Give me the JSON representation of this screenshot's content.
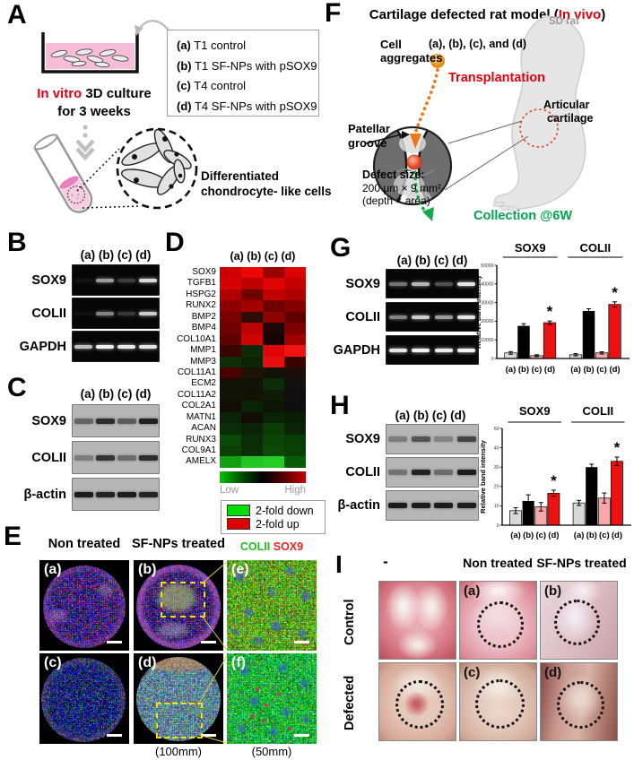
{
  "panelA": {
    "label": "A",
    "legend": [
      {
        "prefix": "(a)",
        "text": " T1 control"
      },
      {
        "prefix": "(b)",
        "text": " T1 SF-NPs with pSOX9"
      },
      {
        "prefix": "(c)",
        "text": " T4 control"
      },
      {
        "prefix": "(d)",
        "text": " T4 SF-NPs with pSOX9"
      }
    ],
    "invitro_red": "In vitro",
    "invitro_black": " 3D culture",
    "invitro_line2": "for 3 weeks",
    "diff_line1": "Differentiated",
    "diff_line2": "chondrocyte- like cells"
  },
  "panelF": {
    "label": "F",
    "title_black": "Cartilage defected rat model (",
    "title_red": "In vivo",
    "title_close": ")",
    "cell_line1": "Cell",
    "cell_line2": "aggregates",
    "groups_line": "(a), (b), (c), and (d)",
    "transplantation": "Transplantation",
    "sd_rat": "SD rat",
    "articular_line1": "Articular",
    "articular_line2": "cartilage",
    "patellar_line1": "Patellar",
    "patellar_line2": "groove",
    "defect_title": "Defect size:",
    "defect_dim": "200 μm × 9 mm²",
    "defect_note": "(depth × area)",
    "collection": "Collection @6W"
  },
  "panelB": {
    "label": "B",
    "lane_header": "(a) (b) (c) (d)",
    "rows": [
      {
        "label": "SOX9",
        "bands": [
          0.05,
          0.6,
          0.22,
          0.85
        ]
      },
      {
        "label": "COLII",
        "bands": [
          0.04,
          0.5,
          0.2,
          0.8
        ]
      },
      {
        "label": "GAPDH",
        "bands": [
          0.75,
          0.95,
          0.92,
          0.9
        ]
      }
    ]
  },
  "panelC": {
    "label": "C",
    "lane_header": "(a) (b) (c) (d)",
    "rows": [
      {
        "label": "SOX9",
        "bands": [
          0.5,
          0.85,
          0.55,
          0.92
        ]
      },
      {
        "label": "COLII",
        "bands": [
          0.35,
          0.8,
          0.45,
          0.85
        ]
      },
      {
        "label": "β-actin",
        "bands": [
          0.95,
          0.9,
          0.95,
          0.9
        ]
      }
    ]
  },
  "panelD": {
    "label": "D",
    "lane_header": "(a) (b) (c) (d)",
    "scale_low": "Low",
    "scale_high": "High",
    "legend_down": "2-fold down",
    "legend_up": "2-fold up",
    "legend_down_color": "#00dd00",
    "legend_up_color": "#dd0000"
  },
  "panelG": {
    "label": "G",
    "lane_header": "(a) (b) (c) (d)",
    "rows": [
      {
        "label": "SOX9",
        "bands": [
          0.45,
          0.7,
          0.3,
          0.9
        ]
      },
      {
        "label": "COLII",
        "bands": [
          0.5,
          0.8,
          0.6,
          0.9
        ]
      },
      {
        "label": "GAPDH",
        "bands": [
          0.9,
          0.95,
          0.92,
          0.95
        ]
      }
    ]
  },
  "panelH": {
    "label": "H",
    "lane_header": "(a) (b) (c) (d)",
    "rows": [
      {
        "label": "SOX9",
        "bands": [
          0.35,
          0.6,
          0.3,
          0.7
        ]
      },
      {
        "label": "COLII",
        "bands": [
          0.4,
          0.9,
          0.45,
          0.95
        ]
      },
      {
        "label": "β-actin",
        "bands": [
          0.95,
          0.95,
          0.95,
          0.95
        ]
      }
    ]
  },
  "panelE": {
    "label": "E",
    "col1": "Non treated",
    "col2": "SF-NPs treated",
    "col3_green": "COLII",
    "col3_red": "SOX9",
    "col3_green_color": "#22bb22",
    "col3_red_color": "#ee2222",
    "img_labels": [
      "(a)",
      "(b)",
      "(e)",
      "(c)",
      "(d)",
      "(f)"
    ],
    "caption_mid": "(100mm)",
    "caption_right": "(50mm)"
  },
  "panelI": {
    "label": "I",
    "col1": "-",
    "col2": "Non treated",
    "col3": "SF-NPs treated",
    "row1": "Control",
    "row2": "Defected",
    "img_labels": [
      "(a)",
      "(b)",
      "(c)",
      "(d)"
    ]
  },
  "chart_data": [
    {
      "id": "panel-g-bars",
      "type": "bar",
      "title": "",
      "xlabel": "",
      "ylabel": "Relative band intensity",
      "ylim": [
        0,
        50000
      ],
      "yticks": [
        0,
        10000,
        20000,
        30000,
        40000,
        50000
      ],
      "groups": [
        "SOX9",
        "COLII"
      ],
      "categories": [
        "(a)",
        "(b)",
        "(c)",
        "(d)"
      ],
      "series": [
        {
          "name": "SOX9",
          "values": [
            3000,
            17500,
            1500,
            19200
          ],
          "errors": [
            700,
            1200,
            500,
            900
          ],
          "sig": [
            false,
            false,
            false,
            true
          ]
        },
        {
          "name": "COLII",
          "values": [
            2000,
            25500,
            3000,
            29000
          ],
          "errors": [
            600,
            1200,
            600,
            1400
          ],
          "sig": [
            false,
            false,
            false,
            true
          ]
        }
      ],
      "bar_colors": [
        "#d9d9d9",
        "#000000",
        "#f5a8a8",
        "#ee1111"
      ],
      "sig_marker": "*"
    },
    {
      "id": "panel-h-bars",
      "type": "bar",
      "title": "",
      "xlabel": "",
      "ylabel": "Relative band intensity",
      "ylim": [
        0,
        50
      ],
      "yticks": [
        0,
        10,
        20,
        30,
        40,
        50
      ],
      "groups": [
        "SOX9",
        "COLII"
      ],
      "categories": [
        "(a)",
        "(b)",
        "(c)",
        "(d)"
      ],
      "series": [
        {
          "name": "SOX9",
          "values": [
            7.5,
            12.5,
            9.5,
            16.5
          ],
          "errors": [
            1.5,
            3.2,
            2.2,
            1.6
          ],
          "sig": [
            false,
            false,
            false,
            true
          ]
        },
        {
          "name": "COLII",
          "values": [
            11.5,
            30,
            14,
            33
          ],
          "errors": [
            1.3,
            1.5,
            2.6,
            2.2
          ],
          "sig": [
            false,
            false,
            false,
            true
          ]
        }
      ],
      "bar_colors": [
        "#d9d9d9",
        "#000000",
        "#f5a8a8",
        "#ee1111"
      ],
      "sig_marker": "*"
    },
    {
      "id": "panel-d-heatmap",
      "type": "heatmap",
      "columns": [
        "(a)",
        "(b)",
        "(c)",
        "(d)"
      ],
      "rows": [
        "SOX9",
        "TGFB1",
        "HSPG2",
        "RUNX2",
        "BMP2",
        "BMP4",
        "COL10A1",
        "MMP1",
        "MMP3",
        "COL11A1",
        "ECM2",
        "COL11A2",
        "COL2A1",
        "MATN1",
        "ACAN",
        "RUNX3",
        "COL9A1",
        "AMELX"
      ],
      "scale": {
        "low": "Low",
        "high": "High"
      },
      "cell_colors": [
        [
          "#cc0000",
          "#ee0505",
          "#990000",
          "#dd0202"
        ],
        [
          "#d40202",
          "#bb0000",
          "#e00404",
          "#c40000"
        ],
        [
          "#b00000",
          "#6e0000",
          "#c00000",
          "#ae0000"
        ],
        [
          "#8e0000",
          "#a40000",
          "#700000",
          "#860000"
        ],
        [
          "#7a0000",
          "#2c0d08",
          "#8e0202",
          "#5e0000"
        ],
        [
          "#700000",
          "#bc0202",
          "#1c0606",
          "#7e0000"
        ],
        [
          "#5e0000",
          "#d00404",
          "#140404",
          "#a00202"
        ],
        [
          "#3a0400",
          "#0e2a06",
          "#e00606",
          "#ee1414"
        ],
        [
          "#0e2e06",
          "#0a2406",
          "#e61010",
          "#3c0400"
        ],
        [
          "#4a0000",
          "#1c1206",
          "#121206",
          "#1e0c0a"
        ],
        [
          "#141206",
          "#101406",
          "#0a2c06",
          "#141010"
        ],
        [
          "#101406",
          "#141006",
          "#0e1c06",
          "#100e0e"
        ],
        [
          "#120e06",
          "#0a2206",
          "#0e1406",
          "#0e0e0e"
        ],
        [
          "#0a2206",
          "#120e06",
          "#0a2206",
          "#0a1e06"
        ],
        [
          "#0a2c06",
          "#0a2206",
          "#0a3c06",
          "#0a2206"
        ],
        [
          "#0a4a06",
          "#0a2c06",
          "#0a4406",
          "#0a3c06"
        ],
        [
          "#0a4006",
          "#0a2c06",
          "#0a4a06",
          "#0a4006"
        ],
        [
          "#12a012",
          "#22c422",
          "#26cc26",
          "#0a5a06"
        ]
      ]
    }
  ]
}
